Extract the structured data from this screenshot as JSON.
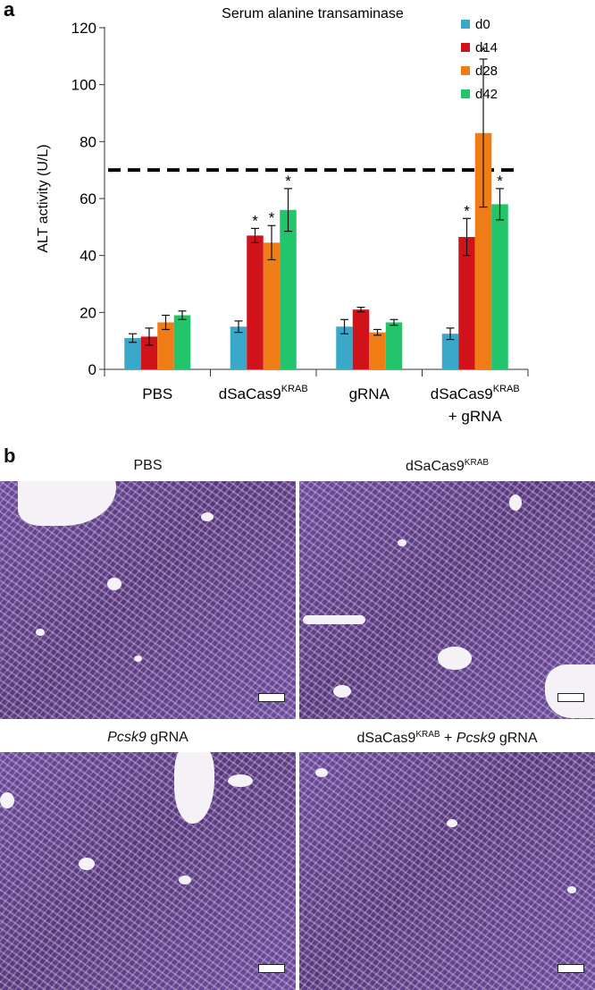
{
  "panel_a_letter": "a",
  "panel_b_letter": "b",
  "chart_data": {
    "type": "bar",
    "title": "Serum alanine transaminase",
    "ylabel": "ALT activity (U/L)",
    "xlabel": "",
    "ylim": [
      0,
      120
    ],
    "yticks": [
      0,
      20,
      40,
      60,
      80,
      100,
      120
    ],
    "threshold": 70,
    "legend_position": "top-right",
    "categories": [
      {
        "main": "PBS",
        "sup": "",
        "line2": ""
      },
      {
        "main": "dSaCas9",
        "sup": "KRAB",
        "line2": ""
      },
      {
        "main": "gRNA",
        "sup": "",
        "line2": ""
      },
      {
        "main": "dSaCas9",
        "sup": "KRAB",
        "line2": "+ gRNA"
      }
    ],
    "series": [
      {
        "name": "d0",
        "color": "#3aa8c8",
        "values": [
          11,
          15,
          15,
          12.5
        ],
        "errors": [
          1.5,
          2,
          2.5,
          2
        ],
        "significant": [
          false,
          false,
          false,
          false
        ]
      },
      {
        "name": "d14",
        "color": "#d0121b",
        "values": [
          11.5,
          47,
          21,
          46.5
        ],
        "errors": [
          3,
          2.5,
          0.8,
          6.5
        ],
        "significant": [
          false,
          true,
          false,
          true
        ]
      },
      {
        "name": "d28",
        "color": "#f07c16",
        "values": [
          16.5,
          44.5,
          13,
          83
        ],
        "errors": [
          2.5,
          6,
          1,
          26
        ],
        "significant": [
          false,
          true,
          false,
          true
        ]
      },
      {
        "name": "d42",
        "color": "#22c46c",
        "values": [
          19,
          56,
          16.5,
          58
        ],
        "errors": [
          1.5,
          7.5,
          1,
          5.5
        ],
        "significant": [
          false,
          true,
          false,
          true
        ]
      }
    ],
    "significance_marker": "*"
  },
  "micrographs": [
    {
      "title_pre": "",
      "title_italic": "",
      "title_main": "PBS",
      "title_sup": "",
      "title_post": ""
    },
    {
      "title_pre": "",
      "title_italic": "",
      "title_main": "dSaCas9",
      "title_sup": "KRAB",
      "title_post": ""
    },
    {
      "title_pre": "",
      "title_italic": "Pcsk9",
      "title_main": "",
      "title_sup": "",
      "title_post": " gRNA"
    },
    {
      "title_pre": "dSaCas9",
      "title_italic": "Pcsk9",
      "title_main": "",
      "title_sup": "KRAB",
      "title_post": " gRNA",
      "joiner": " + "
    }
  ]
}
